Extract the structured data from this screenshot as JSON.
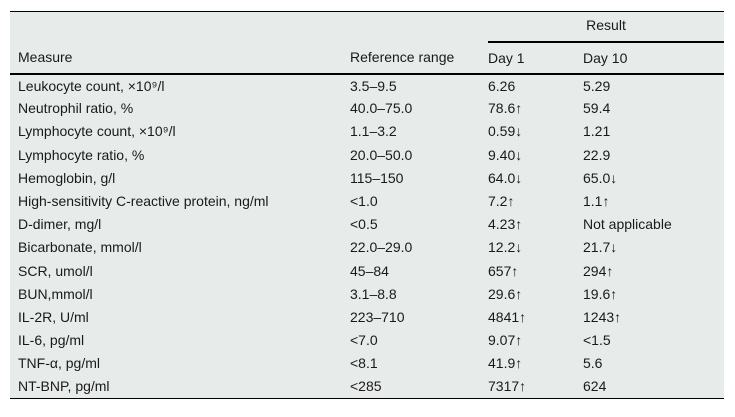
{
  "table": {
    "spanner": {
      "result_label": "Result"
    },
    "columns": {
      "measure": "Measure",
      "reference_range": "Reference range",
      "day1": "Day 1",
      "day10": "Day 10"
    },
    "rows": [
      {
        "measure": "Leukocyte count, ×10⁹/l",
        "reference_range": "3.5–9.5",
        "day1": "6.26",
        "day10": "5.29"
      },
      {
        "measure": "Neutrophil ratio, %",
        "reference_range": "40.0–75.0",
        "day1": "78.6↑",
        "day10": "59.4"
      },
      {
        "measure": "Lymphocyte count, ×10⁹/l",
        "reference_range": "1.1–3.2",
        "day1": "0.59↓",
        "day10": "1.21"
      },
      {
        "measure": "Lymphocyte ratio, %",
        "reference_range": "20.0–50.0",
        "day1": "9.40↓",
        "day10": "22.9"
      },
      {
        "measure": "Hemoglobin, g/l",
        "reference_range": "115–150",
        "day1": "64.0↓",
        "day10": "65.0↓"
      },
      {
        "measure": "High-sensitivity C-reactive protein, ng/ml",
        "reference_range": "<1.0",
        "day1": "7.2↑",
        "day10": "1.1↑"
      },
      {
        "measure": "D-dimer, mg/l",
        "reference_range": "<0.5",
        "day1": "4.23↑",
        "day10": "Not applicable"
      },
      {
        "measure": "Bicarbonate, mmol/l",
        "reference_range": "22.0–29.0",
        "day1": "12.2↓",
        "day10": "21.7↓"
      },
      {
        "measure": "SCR, umol/l",
        "reference_range": "45–84",
        "day1": "657↑",
        "day10": "294↑"
      },
      {
        "measure": "BUN,mmol/l",
        "reference_range": "3.1–8.8",
        "day1": "29.6↑",
        "day10": "19.6↑"
      },
      {
        "measure": "IL-2R, U/ml",
        "reference_range": "223–710",
        "day1": "4841↑",
        "day10": "1243↑"
      },
      {
        "measure": "IL-6, pg/ml",
        "reference_range": "<7.0",
        "day1": "9.07↑",
        "day10": "<1.5"
      },
      {
        "measure": "TNF-α, pg/ml",
        "reference_range": "<8.1",
        "day1": "41.9↑",
        "day10": "5.6"
      },
      {
        "measure": "NT-BNP, pg/ml",
        "reference_range": "<285",
        "day1": "7317↑",
        "day10": "624"
      }
    ]
  },
  "colors": {
    "table_background": "#e7ebea",
    "rule": "#000000",
    "text": "#1a1a1a"
  }
}
